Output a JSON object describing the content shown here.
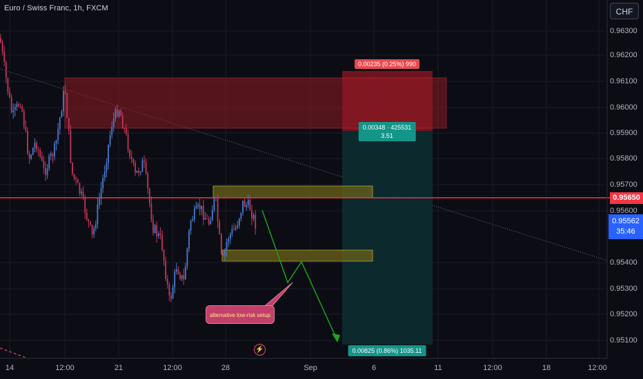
{
  "header": {
    "title": "Euro / Swiss Franc, 1h, FXCM"
  },
  "currency_button": {
    "label": "CHF"
  },
  "price_axis": [
    "0.96300",
    "0.96200",
    "0.96100",
    "0.96000",
    "0.95900",
    "0.95800",
    "0.95700",
    "0.95600",
    "0.95400",
    "0.95300",
    "0.95200",
    "0.95100"
  ],
  "time_axis": [
    "14",
    "12:00",
    "21",
    "12:00",
    "28",
    "Sep",
    "6",
    "11",
    "12:00",
    "18",
    "12:00"
  ],
  "price_labels": {
    "level": "0.95650",
    "current": "0.95562",
    "countdown": "35:46"
  },
  "position_tool": {
    "stop_label": "0.00235 (0.25%) 990",
    "entry_label_line1": "0.00348 · 425531",
    "entry_label_line2": "3.51",
    "target_label": "0.00825 (0.86%) 1035.11"
  },
  "annotation": {
    "text": "alternative low-risk setup"
  },
  "icons": {
    "alert": "lightning-bolt-icon"
  },
  "colors": {
    "background": "#0c0d14",
    "up": "#4a7bd1",
    "down": "#c2375a",
    "level_line": "#f23645",
    "stop_zone": "#8e1a24",
    "target_zone": "#0b2e2e",
    "box": "#6b6318",
    "arrow": "#1ea21e"
  }
}
